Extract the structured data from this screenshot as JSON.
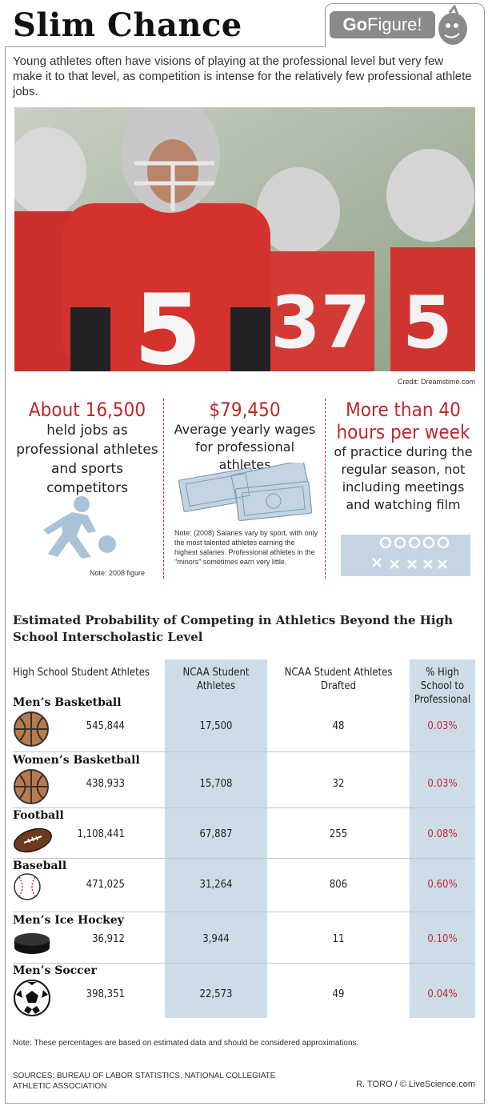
{
  "header": {
    "title": "Slim Chance",
    "badge_go": "Go",
    "badge_figure": "Figure!"
  },
  "intro": "Young athletes often have visions of playing at the professional level but very few make it to that level, as competition is intense for the relatively few professional athlete jobs.",
  "photo": {
    "credit": "Credit: Dreamstime.com",
    "jersey_main": "5",
    "jersey_right1": "37",
    "jersey_right2": "5"
  },
  "stats": [
    {
      "big": "About 16,500",
      "desc": "held jobs as professional athletes and sports competitors",
      "note": "Note: 2008 figure",
      "icon": "basketball-player-icon"
    },
    {
      "big": "$79,450",
      "desc": "Average yearly wages for professional athletes",
      "note": "Note: (2008) Salaries vary by sport, with only the most talented athletes earning the highest salaries. Professional athletes in the \"minors\" sometimes earn very little.",
      "icon": "money-icon"
    },
    {
      "big": "More than 40 hours per week",
      "desc": "of practice during the regular season, not including meetings and watching film",
      "icon": "play-diagram-icon"
    }
  ],
  "table": {
    "title": "Estimated Probability of Competing in Athletics Beyond the High School Interscholastic Level",
    "columns": [
      "High School Student Athletes",
      "NCAA Student Athletes",
      "NCAA Student Athletes Drafted",
      "% High School to Professional"
    ],
    "rows": [
      {
        "sport": "Men’s Basketball",
        "hs": "545,844",
        "ncaa": "17,500",
        "drafted": "48",
        "pct": "0.03%",
        "icon": "basketball-icon"
      },
      {
        "sport": "Women’s Basketball",
        "hs": "438,933",
        "ncaa": "15,708",
        "drafted": "32",
        "pct": "0.03%",
        "icon": "basketball-icon"
      },
      {
        "sport": "Football",
        "hs": "1,108,441",
        "ncaa": "67,887",
        "drafted": "255",
        "pct": "0.08%",
        "icon": "football-icon"
      },
      {
        "sport": "Baseball",
        "hs": "471,025",
        "ncaa": "31,264",
        "drafted": "806",
        "pct": "0.60%",
        "icon": "baseball-icon"
      },
      {
        "sport": "Men’s Ice Hockey",
        "hs": "36,912",
        "ncaa": "3,944",
        "drafted": "11",
        "pct": "0.10%",
        "icon": "hockey-puck-icon"
      },
      {
        "sport": "Men’s Soccer",
        "hs": "398,351",
        "ncaa": "22,573",
        "drafted": "49",
        "pct": "0.04%",
        "icon": "soccer-ball-icon"
      }
    ]
  },
  "footer": {
    "note": "Note: These percentages are based on estimated data and should be considered approximations.",
    "sources": "SOURCES: BUREAU OF LABOR STATISTICS, NATIONAL COLLEGIATE ATHLETIC ASSOCIATION",
    "byline": "R. TORO / © LiveScience.com"
  },
  "colors": {
    "accent_red": "#c0272d",
    "column_blue": "#cddde8",
    "badge_gray": "#8a8a8a"
  }
}
